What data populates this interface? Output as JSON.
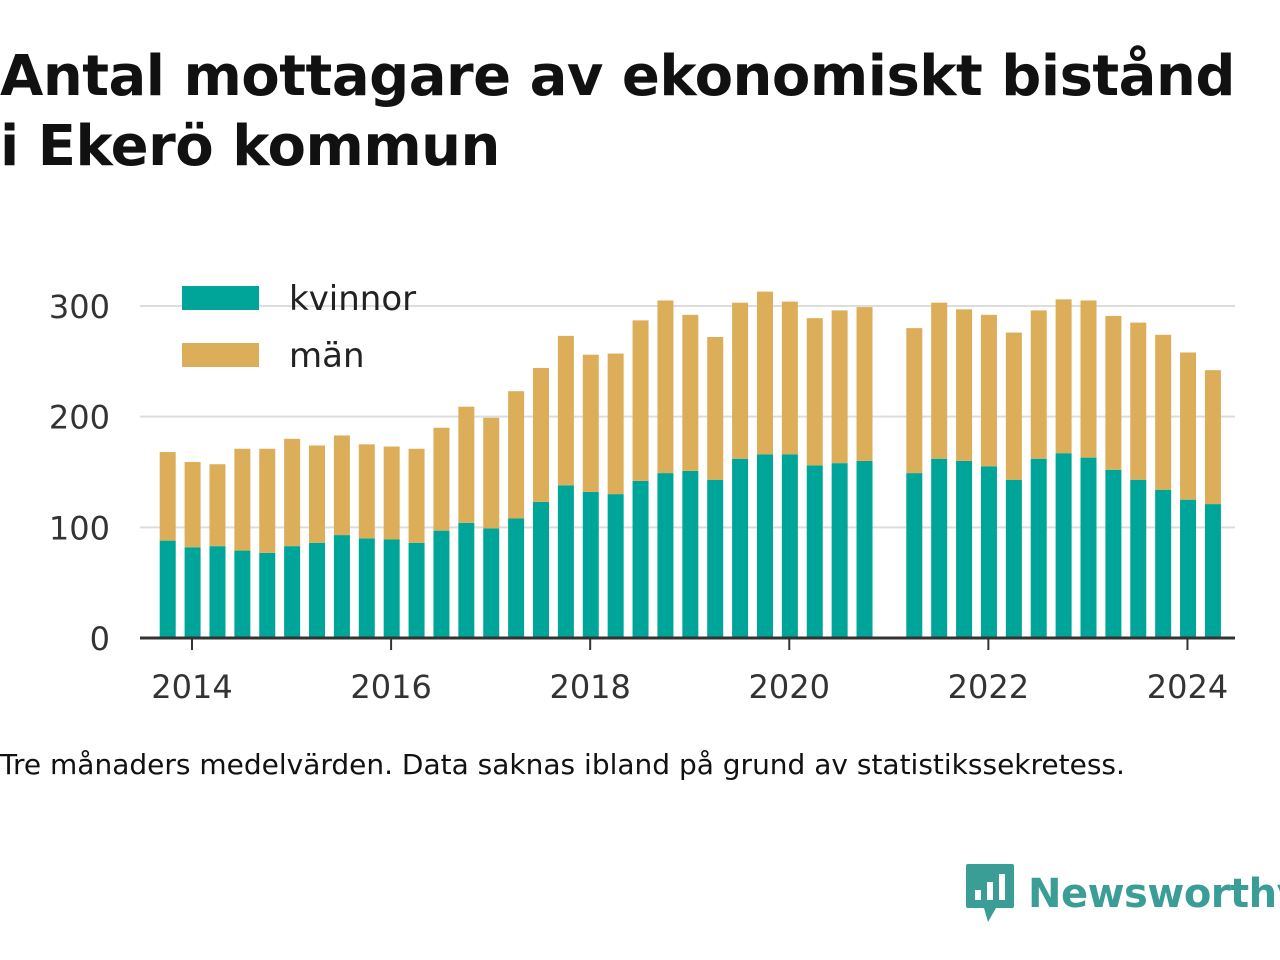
{
  "title_line1": "Antal mottagare av ekonomiskt bistånd",
  "title_line2": "i Ekerö kommun",
  "caption": "Tre månaders medelvärden. Data saknas ibland på grund av statistikssekretess.",
  "brand": {
    "name": "Newsworthy",
    "icon": "newsworthy-logo-icon"
  },
  "colors": {
    "kvinnor": "#00a599",
    "man": "#dcae59",
    "grid": "#dddddd",
    "axis": "#333333",
    "brand": "#3a9e96"
  },
  "chart_data": {
    "type": "bar",
    "stacked": true,
    "title": "Antal mottagare av ekonomiskt bistånd i Ekerö kommun",
    "xlabel": "",
    "ylabel": "",
    "ylim": [
      0,
      320
    ],
    "yticks": [
      0,
      100,
      200,
      300
    ],
    "xticks": [
      "2014",
      "2016",
      "2018",
      "2020",
      "2022",
      "2024"
    ],
    "grid": true,
    "legend_position": "top-left",
    "x": [
      "2014-04",
      "2014-07",
      "2014-10",
      "2015-01",
      "2015-04",
      "2015-07",
      "2015-10",
      "2016-01",
      "2016-04",
      "2016-07",
      "2016-10",
      "2017-01",
      "2017-04",
      "2017-07",
      "2017-10",
      "2018-01",
      "2018-04",
      "2018-07",
      "2018-10",
      "2019-01",
      "2019-04",
      "2019-07",
      "2019-10",
      "2020-01",
      "2020-04",
      "2020-07",
      "2020-10",
      "2021-01",
      "2021-04",
      "2021-07",
      "2021-10",
      "2022-01",
      "2022-04",
      "2022-07",
      "2022-10",
      "2023-01",
      "2023-04",
      "2023-07",
      "2023-10",
      "2024-01",
      "2024-04",
      "2024-07",
      "2024-10"
    ],
    "series": [
      {
        "name": "kvinnor",
        "values": [
          88,
          82,
          83,
          79,
          77,
          83,
          86,
          93,
          90,
          89,
          86,
          97,
          104,
          99,
          108,
          123,
          138,
          132,
          130,
          142,
          149,
          151,
          143,
          162,
          166,
          166,
          156,
          158,
          160,
          null,
          149,
          162,
          160,
          155,
          143,
          162,
          167,
          163,
          152,
          143,
          134,
          125,
          121
        ]
      },
      {
        "name": "män",
        "values": [
          80,
          77,
          74,
          92,
          94,
          97,
          88,
          90,
          85,
          84,
          85,
          93,
          105,
          100,
          115,
          121,
          135,
          124,
          127,
          145,
          156,
          141,
          129,
          141,
          147,
          138,
          133,
          138,
          139,
          null,
          131,
          141,
          137,
          137,
          133,
          134,
          139,
          142,
          139,
          142,
          140,
          133,
          121
        ]
      }
    ]
  }
}
